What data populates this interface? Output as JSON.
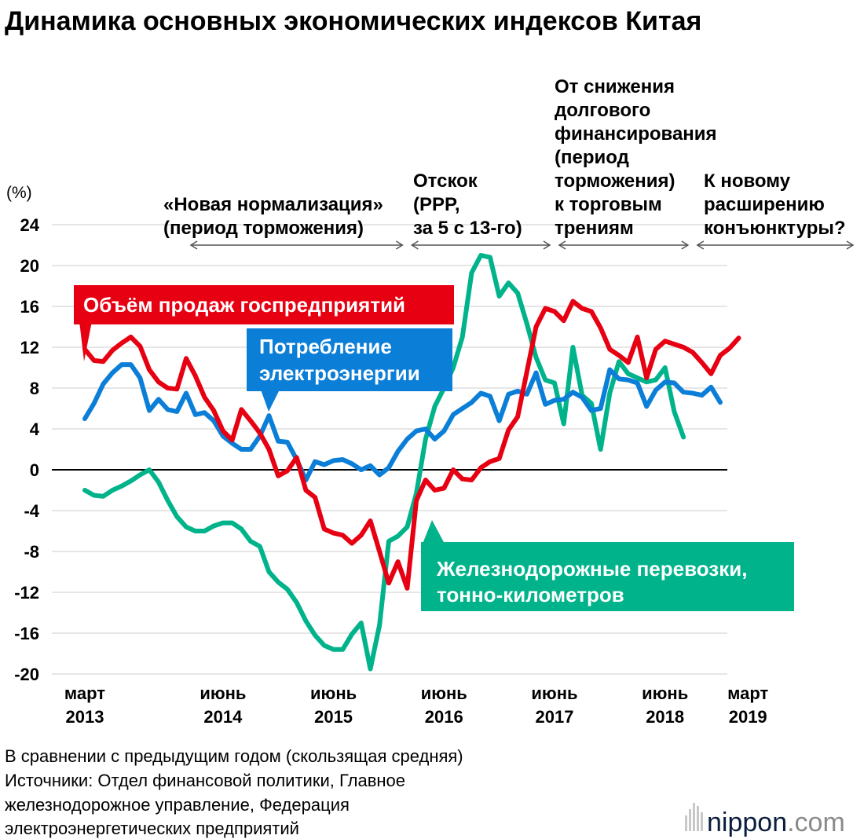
{
  "chart_data": {
    "type": "line",
    "title": "Динамика основных экономических индексов Китая",
    "ylabel": "(%)",
    "ylim": [
      -20,
      24
    ],
    "yticks": [
      24,
      20,
      16,
      12,
      8,
      4,
      0,
      -4,
      -8,
      -12,
      -16,
      -20
    ],
    "xticks": [
      {
        "month": 0,
        "line1": "март",
        "line2": "2013"
      },
      {
        "month": 15,
        "line1": "июнь",
        "line2": "2014"
      },
      {
        "month": 27,
        "line1": "июнь",
        "line2": "2015"
      },
      {
        "month": 39,
        "line1": "июнь",
        "line2": "2016"
      },
      {
        "month": 51,
        "line1": "июнь",
        "line2": "2017"
      },
      {
        "month": 63,
        "line1": "июнь",
        "line2": "2018"
      },
      {
        "month": 72,
        "line1": "март",
        "line2": "2019"
      }
    ],
    "x_unit": "месяцы с марта 2013",
    "periods": [
      {
        "lines": [
          "«Новая нормализация»",
          "(период торможения)"
        ],
        "start": 11,
        "end": 35
      },
      {
        "lines": [
          "Отскок",
          "(PPP,",
          "за 5 с 13-го)"
        ],
        "start": 35,
        "end": 51
      },
      {
        "lines": [
          "От снижения",
          "долгового",
          "финансирования",
          "(период",
          "торможения)",
          "к торговым",
          "трениям"
        ],
        "start": 51,
        "end": 66
      },
      {
        "lines": [
          "К новому",
          "расширению",
          "конъюнктуры?"
        ],
        "start": 66,
        "end": 84
      }
    ],
    "series": [
      {
        "name": "Объём продаж госпредприятий",
        "color": "#e60012",
        "x": [
          0,
          1,
          2,
          3,
          4,
          5,
          6,
          7,
          8,
          9,
          10,
          11,
          12,
          13,
          14,
          15,
          16,
          17,
          18,
          19,
          20,
          21,
          22,
          23,
          24,
          25,
          26,
          27,
          28,
          29,
          30,
          31,
          32,
          33,
          34,
          35,
          36,
          37,
          38,
          39,
          40,
          41,
          42,
          43,
          44,
          45,
          46,
          47,
          48,
          49,
          50,
          51,
          52,
          53,
          54,
          55,
          56,
          57,
          58,
          59,
          60,
          61,
          62,
          63,
          64,
          65,
          66,
          67,
          68,
          69,
          70,
          71,
          72
        ],
        "values": [
          11.8,
          10.7,
          10.6,
          11.7,
          12.4,
          13.0,
          12.1,
          9.8,
          8.6,
          8.0,
          7.9,
          10.9,
          9.2,
          7.1,
          5.8,
          3.8,
          2.9,
          5.9,
          4.8,
          3.6,
          2.0,
          -0.6,
          -0.1,
          1.2,
          -2.0,
          -2.7,
          -5.8,
          -6.2,
          -6.4,
          -7.2,
          -6.4,
          -5.0,
          -8.0,
          -11.1,
          -9.0,
          -11.6,
          -3.0,
          -1.0,
          -2.0,
          -1.8,
          0.0,
          -0.9,
          -1.0,
          0.2,
          0.8,
          1.1,
          3.9,
          5.2,
          9.6,
          14.0,
          15.8,
          15.5,
          14.6,
          16.5,
          15.8,
          15.5,
          13.9,
          11.8,
          11.2,
          10.5,
          13.0,
          9.0,
          11.8,
          12.6,
          12.3,
          12.0,
          11.5,
          10.5,
          9.4,
          11.2,
          11.9,
          12.9,
          null
        ]
      },
      {
        "name": "Потребление электроэнергии",
        "color": "#0b7ed7",
        "x": [
          0,
          1,
          2,
          3,
          4,
          5,
          6,
          7,
          8,
          9,
          10,
          11,
          12,
          13,
          14,
          15,
          16,
          17,
          18,
          19,
          20,
          21,
          22,
          23,
          24,
          25,
          26,
          27,
          28,
          29,
          30,
          31,
          32,
          33,
          34,
          35,
          36,
          37,
          38,
          39,
          40,
          41,
          42,
          43,
          44,
          45,
          46,
          47,
          48,
          49,
          50,
          51,
          52,
          53,
          54,
          55,
          56,
          57,
          58,
          59,
          60,
          61,
          62,
          63,
          64,
          65,
          66,
          67,
          68,
          69,
          70,
          71,
          72
        ],
        "values": [
          5.0,
          6.5,
          8.4,
          9.5,
          10.3,
          10.3,
          9.0,
          5.8,
          6.9,
          5.9,
          5.7,
          7.5,
          5.4,
          5.6,
          4.8,
          3.3,
          2.6,
          2.0,
          2.0,
          3.3,
          5.3,
          2.8,
          2.7,
          1.0,
          -1.0,
          0.8,
          0.5,
          0.9,
          1.0,
          0.6,
          0.0,
          0.4,
          -0.5,
          0.2,
          1.8,
          3.0,
          3.8,
          4.0,
          3.0,
          3.8,
          5.4,
          6.0,
          6.6,
          7.5,
          7.2,
          4.8,
          7.4,
          7.7,
          7.4,
          9.5,
          6.4,
          6.8,
          6.9,
          7.6,
          7.1,
          5.8,
          6.0,
          9.8,
          8.9,
          8.8,
          8.5,
          6.2,
          7.8,
          8.6,
          8.5,
          7.6,
          7.5,
          7.3,
          8.1,
          6.6,
          null,
          null,
          null
        ]
      },
      {
        "name": "Железнодорожные перевозки, тонно-километров",
        "color": "#00b38b",
        "x": [
          0,
          1,
          2,
          3,
          4,
          5,
          6,
          7,
          8,
          9,
          10,
          11,
          12,
          13,
          14,
          15,
          16,
          17,
          18,
          19,
          20,
          21,
          22,
          23,
          24,
          25,
          26,
          27,
          28,
          29,
          30,
          31,
          32,
          33,
          34,
          35,
          36,
          37,
          38,
          39,
          40,
          41,
          42,
          43,
          44,
          45,
          46,
          47,
          48,
          49,
          50,
          51,
          52,
          53,
          54,
          55,
          56,
          57,
          58,
          59,
          60,
          61,
          62,
          63,
          64,
          65,
          66,
          67,
          68,
          69,
          70,
          71,
          72
        ],
        "values": [
          -2.0,
          -2.5,
          -2.6,
          -2.0,
          -1.6,
          -1.1,
          -0.5,
          0.0,
          -1.2,
          -3.0,
          -4.6,
          -5.6,
          -6.0,
          -6.0,
          -5.5,
          -5.2,
          -5.2,
          -5.8,
          -7.0,
          -7.5,
          -10.0,
          -11.0,
          -11.7,
          -13.0,
          -14.8,
          -16.2,
          -17.2,
          -17.6,
          -17.6,
          -16.1,
          -15.0,
          -19.5,
          -15.2,
          -7.0,
          -6.5,
          -5.6,
          -2.3,
          3.0,
          6.2,
          8.0,
          10.0,
          13.0,
          19.3,
          21.0,
          20.8,
          17.0,
          18.3,
          17.3,
          14.3,
          11.0,
          8.8,
          8.5,
          4.5,
          12.0,
          7.3,
          6.5,
          2.0,
          7.5,
          10.6,
          9.4,
          9.0,
          8.6,
          8.8,
          10.0,
          5.7,
          3.2,
          null,
          null,
          null,
          null,
          null,
          null,
          null
        ]
      }
    ],
    "labels": {
      "soe": "Объём продаж госпредприятий",
      "power": [
        "Потребление",
        "электроэнергии"
      ],
      "rail": [
        "Железнодорожные перевозки,",
        "тонно-километров"
      ]
    },
    "notes": [
      "В сравнении с предыдущим годом (скользящая средняя)",
      "Источники: Отдел финансовой политики, Главное",
      "железнодорожное управление, Федерация",
      "электроэнергетических предприятий"
    ],
    "brand": {
      "name": "nippon",
      "suffix": ".com",
      "color": "#0a1e3c",
      "suffix_color": "#8a8a8a"
    },
    "grid": true,
    "zero_line": true
  }
}
